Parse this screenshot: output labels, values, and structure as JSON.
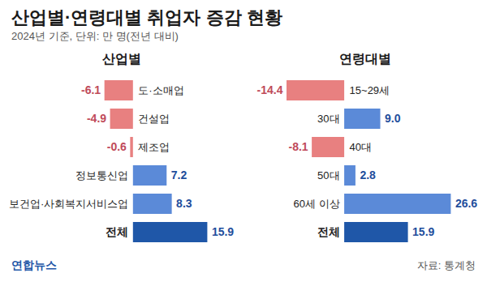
{
  "title": "산업별·연령대별 취업자 증감 현황",
  "subtitle": "2024년 기준, 단위: 만 명(전년 대비)",
  "source": "자료: 통계청",
  "credit": "연합뉴스",
  "chart_data": [
    {
      "type": "bar",
      "title": "산업별",
      "orientation": "horizontal",
      "categories": [
        "도·소매업",
        "건설업",
        "제조업",
        "정보통신업",
        "보건업·사회복지서비스업",
        "전체"
      ],
      "values": [
        -6.1,
        -4.9,
        -0.6,
        7.2,
        8.3,
        15.9
      ],
      "value_labels": [
        "-6.1",
        "-4.9",
        "-0.6",
        "7.2",
        "8.3",
        "15.9"
      ],
      "colors": [
        "#e88080",
        "#e88080",
        "#e88080",
        "#5b8ad8",
        "#5b8ad8",
        "#1f57a8"
      ],
      "data_labels": true,
      "tick_labels": false
    },
    {
      "type": "bar",
      "title": "연령대별",
      "orientation": "horizontal",
      "categories": [
        "15~29세",
        "30대",
        "40대",
        "50대",
        "60세 이상",
        "전체"
      ],
      "values": [
        -14.4,
        9.0,
        -8.1,
        2.8,
        26.6,
        15.9
      ],
      "value_labels": [
        "-14.4",
        "9.0",
        "-8.1",
        "2.8",
        "26.6",
        "15.9"
      ],
      "colors": [
        "#e88080",
        "#5b8ad8",
        "#e88080",
        "#5b8ad8",
        "#5b8ad8",
        "#1f57a8"
      ],
      "data_labels": true,
      "tick_labels": false
    }
  ]
}
